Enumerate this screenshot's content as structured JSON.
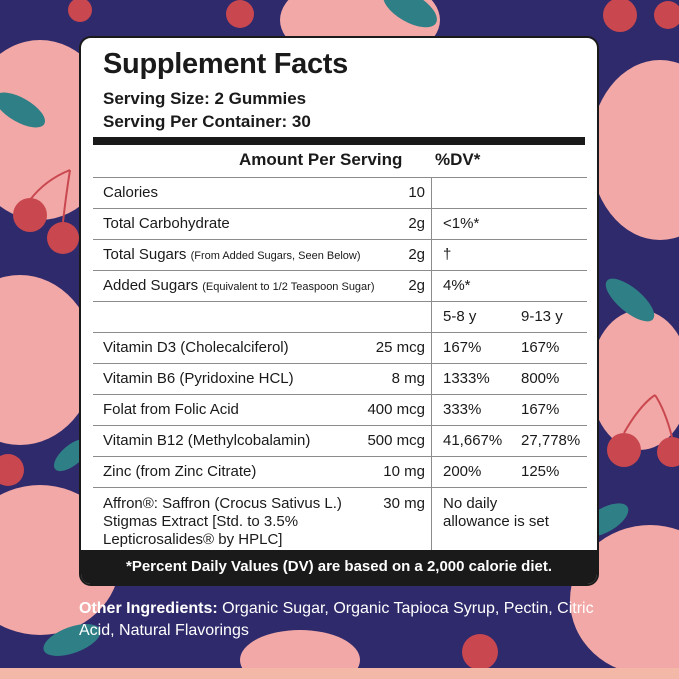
{
  "panel": {
    "title": "Supplement Facts",
    "serving_size": "Serving Size: 2 Gummies",
    "servings_per_container": "Serving Per Container: 30",
    "header_amount": "Amount Per Serving",
    "header_dv": "%DV*"
  },
  "rows": [
    {
      "name": "Calories",
      "note": "",
      "amount": "10",
      "dv1": "",
      "dv2": ""
    },
    {
      "name": "Total Carbohydrate",
      "note": "",
      "amount": "2g",
      "dv1": "<1%*",
      "dv2": ""
    },
    {
      "name": "Total Sugars",
      "note": "(From Added Sugars, Seen Below)",
      "amount": "2g",
      "dv1": "†",
      "dv2": ""
    },
    {
      "name": "Added Sugars",
      "note": "(Equivalent to 1/2 Teaspoon Sugar)",
      "amount": "2g",
      "dv1": "4%*",
      "dv2": ""
    },
    {
      "name": "",
      "note": "",
      "amount": "",
      "dv1": "5-8 y",
      "dv2": "9-13 y"
    },
    {
      "name": "Vitamin D3 (Cholecalciferol)",
      "note": "",
      "amount": "25 mcg",
      "dv1": "167%",
      "dv2": "167%"
    },
    {
      "name": "Vitamin B6 (Pyridoxine HCL)",
      "note": "",
      "amount": "8 mg",
      "dv1": "1333%",
      "dv2": "800%"
    },
    {
      "name": "Folat from Folic Acid",
      "note": "",
      "amount": "400 mcg",
      "dv1": "333%",
      "dv2": "167%"
    },
    {
      "name": "Vitamin B12 (Methylcobalamin)",
      "note": "",
      "amount": "500 mcg",
      "dv1": "41,667%",
      "dv2": "27,778%"
    },
    {
      "name": "Zinc (from Zinc Citrate)",
      "note": "",
      "amount": "10 mg",
      "dv1": "200%",
      "dv2": "125%"
    }
  ],
  "affron": {
    "line1": "Affron®: Saffron (Crocus Sativus L.)",
    "line2": "Stigmas Extract [Std. to 3.5%",
    "line3": "Lepticrosalides® by HPLC]",
    "amount": "30 mg",
    "dv_line1": "No daily",
    "dv_line2": "allowance is set"
  },
  "footer": "*Percent Daily Values (DV) are based on a 2,000 calorie diet.",
  "other_ingredients": {
    "label": "Other Ingredients:",
    "text": "Organic Sugar, Organic Tapioca Syrup, Pectin, Citric Acid, Natural Flavorings"
  },
  "colors": {
    "background": "#2f2a6b",
    "peach": "#f2a8a6",
    "cherry": "#c9474f",
    "leaf": "#2f7f86",
    "text": "#1a1a1a"
  }
}
